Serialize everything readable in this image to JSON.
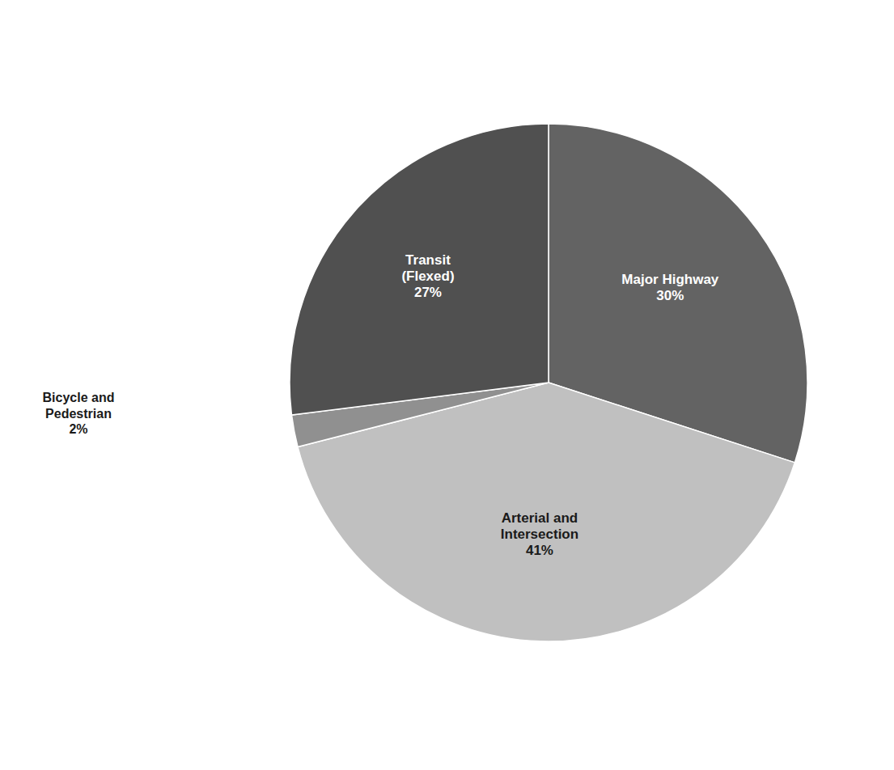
{
  "chart_data": {
    "type": "pie",
    "categories": [
      "Major Highway",
      "Arterial and\nIntersection",
      "Bicycle and\nPedestrian",
      "Transit\n(Flexed)"
    ],
    "values": [
      30,
      41,
      2,
      27
    ],
    "value_labels": [
      "30%",
      "41%",
      "2%",
      "27%"
    ],
    "colors": [
      "#636363",
      "#c0c0c0",
      "#909090",
      "#505050"
    ],
    "data_labels": true
  }
}
